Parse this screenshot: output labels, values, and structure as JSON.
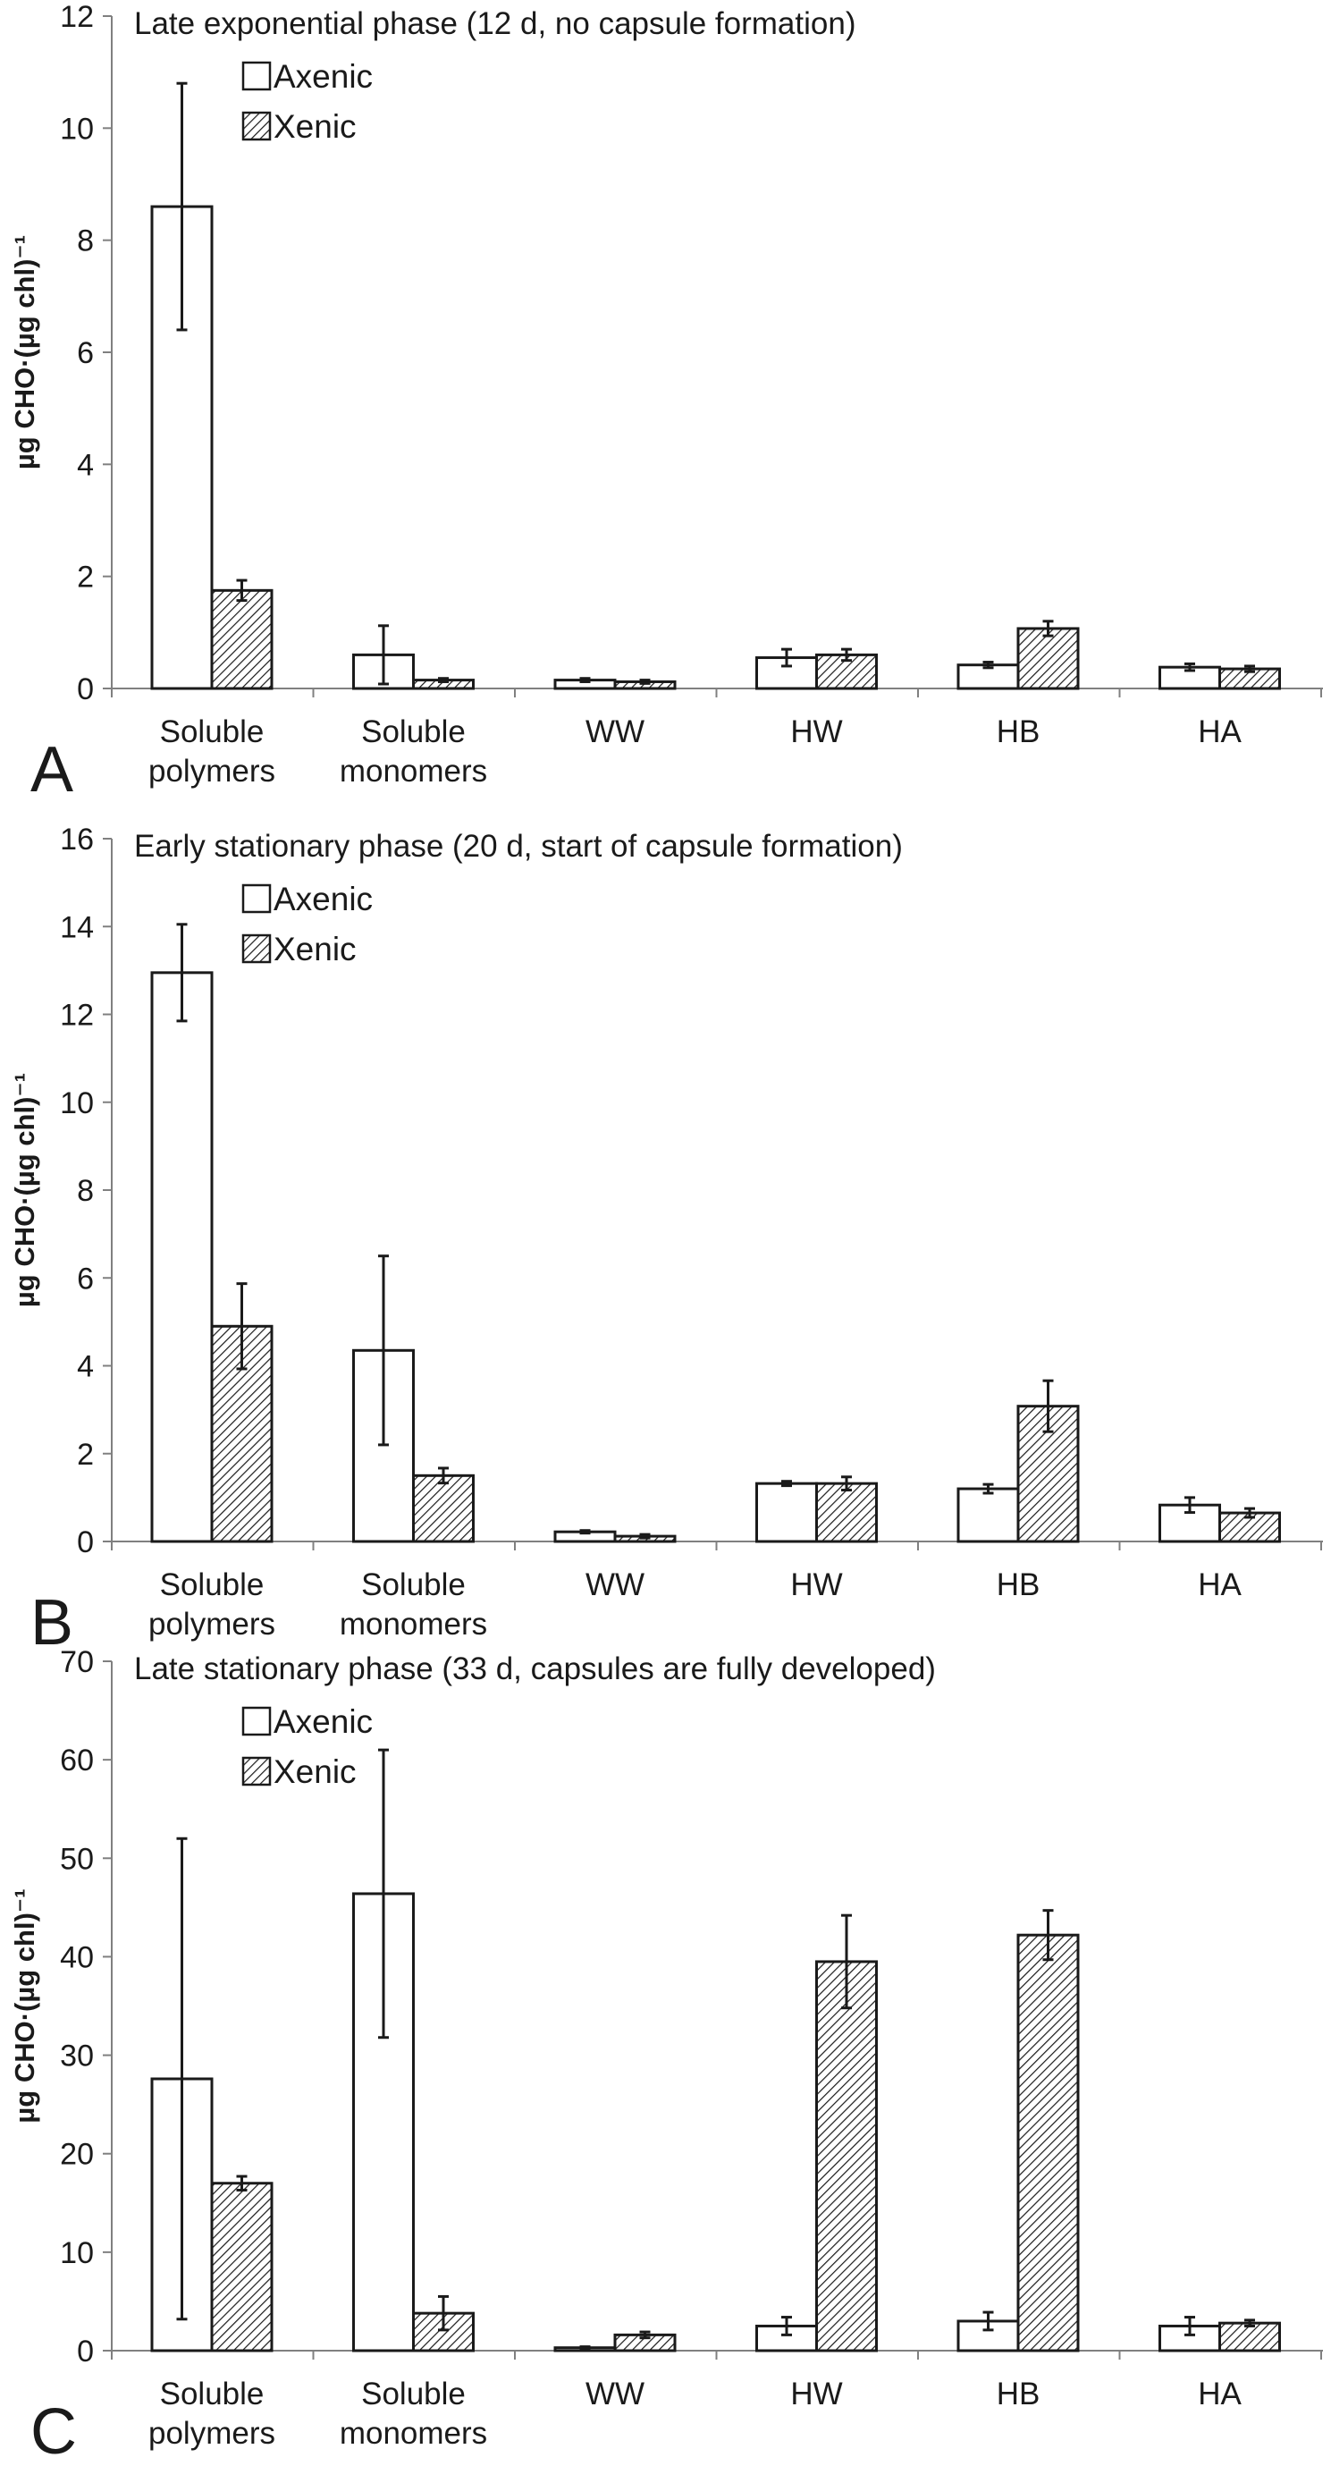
{
  "colors": {
    "axenic_fill": "#ffffff",
    "xenic_hatch": "#1a1a1a",
    "stroke": "#1a1a1a",
    "axis": "#808080"
  },
  "chart_data": [
    {
      "type": "bar",
      "panel": "A",
      "title": "Late exponential phase (12 d, no capsule formation)",
      "ylabel": "µg CHO·(µg chl)⁻¹",
      "ylim": [
        0,
        12
      ],
      "yticks": [
        0,
        2,
        4,
        6,
        8,
        10,
        12
      ],
      "categories": [
        [
          "Soluble",
          "polymers"
        ],
        [
          "Soluble",
          "monomers"
        ],
        [
          "WW"
        ],
        [
          "HW"
        ],
        [
          "HB"
        ],
        [
          "HA"
        ]
      ],
      "legend_position": "top-left",
      "series": [
        {
          "name": "Axenic",
          "pattern": "open",
          "values": [
            8.6,
            0.6,
            0.15,
            0.55,
            0.42,
            0.38
          ],
          "errors": [
            2.2,
            0.52,
            0.03,
            0.15,
            0.05,
            0.06
          ]
        },
        {
          "name": "Xenic",
          "pattern": "hatched",
          "values": [
            1.75,
            0.15,
            0.12,
            0.6,
            1.07,
            0.35
          ],
          "errors": [
            0.18,
            0.03,
            0.03,
            0.1,
            0.13,
            0.05
          ]
        }
      ]
    },
    {
      "type": "bar",
      "panel": "B",
      "title": "Early stationary phase (20 d, start of capsule formation)",
      "ylabel": "µg CHO·(µg chl)⁻¹",
      "ylim": [
        0,
        16
      ],
      "yticks": [
        0,
        2,
        4,
        6,
        8,
        10,
        12,
        14,
        16
      ],
      "categories": [
        [
          "Soluble",
          "polymers"
        ],
        [
          "Soluble",
          "monomers"
        ],
        [
          "WW"
        ],
        [
          "HW"
        ],
        [
          "HB"
        ],
        [
          "HA"
        ]
      ],
      "legend_position": "top-left",
      "series": [
        {
          "name": "Axenic",
          "pattern": "open",
          "values": [
            12.95,
            4.35,
            0.22,
            1.32,
            1.2,
            0.83
          ],
          "errors": [
            1.1,
            2.15,
            0.03,
            0.05,
            0.1,
            0.17
          ]
        },
        {
          "name": "Xenic",
          "pattern": "hatched",
          "values": [
            4.9,
            1.5,
            0.12,
            1.32,
            3.08,
            0.65
          ],
          "errors": [
            0.97,
            0.17,
            0.04,
            0.15,
            0.58,
            0.1
          ]
        }
      ]
    },
    {
      "type": "bar",
      "panel": "C",
      "title": "Late stationary phase (33 d, capsules are fully developed)",
      "ylabel": "µg CHO·(µg chl)⁻¹",
      "ylim": [
        0,
        70
      ],
      "yticks": [
        0,
        10,
        20,
        30,
        40,
        50,
        60,
        70
      ],
      "categories": [
        [
          "Soluble",
          "polymers"
        ],
        [
          "Soluble",
          "monomers"
        ],
        [
          "WW"
        ],
        [
          "HW"
        ],
        [
          "HB"
        ],
        [
          "HA"
        ]
      ],
      "legend_position": "top-left",
      "series": [
        {
          "name": "Axenic",
          "pattern": "open",
          "values": [
            27.6,
            46.4,
            0.3,
            2.5,
            3.0,
            2.5
          ],
          "errors": [
            24.4,
            14.6,
            0.1,
            0.9,
            0.9,
            0.9
          ]
        },
        {
          "name": "Xenic",
          "pattern": "hatched",
          "values": [
            17.0,
            3.8,
            1.6,
            39.5,
            42.2,
            2.8
          ],
          "errors": [
            0.7,
            1.7,
            0.3,
            4.7,
            2.5,
            0.3
          ]
        }
      ]
    }
  ]
}
